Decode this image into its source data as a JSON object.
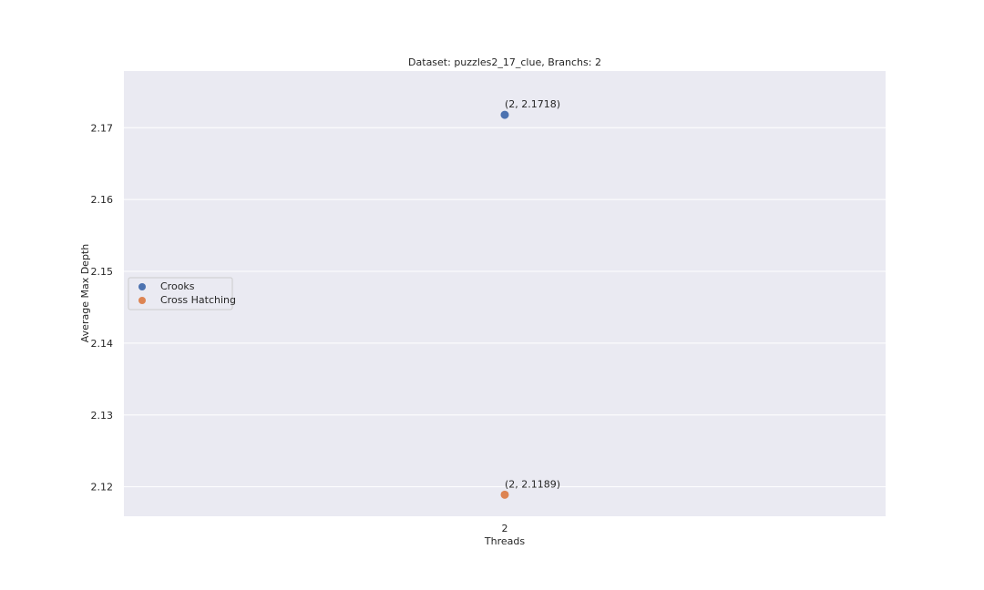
{
  "chart_data": {
    "type": "scatter",
    "title": "Dataset: puzzles2_17_clue, Branchs: 2",
    "xlabel": "Threads",
    "ylabel": "Average Max Depth",
    "categories": [
      "2"
    ],
    "ylim": [
      2.1159,
      2.1779
    ],
    "yticks": [
      2.12,
      2.13,
      2.14,
      2.15,
      2.16,
      2.17
    ],
    "ytick_labels": [
      "2.12",
      "2.13",
      "2.14",
      "2.15",
      "2.16",
      "2.17"
    ],
    "grid": true,
    "legend_position": "center-left",
    "series": [
      {
        "name": "Crooks",
        "color": "#4c72b0",
        "points": [
          {
            "x": "2",
            "y": 2.1718,
            "label": "(2, 2.1718)"
          }
        ]
      },
      {
        "name": "Cross Hatching",
        "color": "#dd8452",
        "points": [
          {
            "x": "2",
            "y": 2.1189,
            "label": "(2, 2.1189)"
          }
        ]
      }
    ],
    "background_color": "#eaeaf2",
    "grid_color": "#ffffff"
  }
}
